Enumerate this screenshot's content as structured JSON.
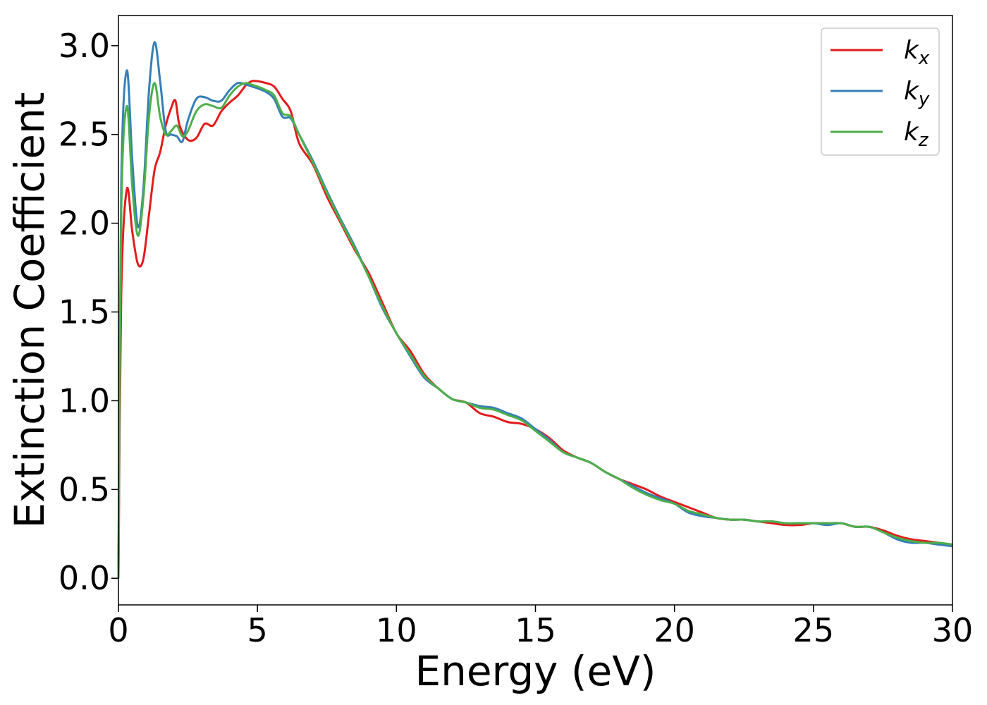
{
  "chart_data": {
    "type": "line",
    "xlabel": "Energy (eV)",
    "ylabel": "Extinction Coefficient",
    "xlim": [
      0,
      30
    ],
    "ylim": [
      -0.15,
      3.17
    ],
    "xticks": [
      0,
      5,
      10,
      15,
      20,
      25,
      30
    ],
    "yticks": [
      0.0,
      0.5,
      1.0,
      1.5,
      2.0,
      2.5,
      3.0
    ],
    "xtick_labels": [
      "0",
      "5",
      "10",
      "15",
      "20",
      "25",
      "30"
    ],
    "ytick_labels": [
      "0.0",
      "0.5",
      "1.0",
      "1.5",
      "2.0",
      "2.5",
      "3.0"
    ],
    "grid": false,
    "legend_position": "top-right",
    "series": [
      {
        "name": "k_x",
        "label_main": "k",
        "label_sub": "x",
        "color": "#e41a1c",
        "x": [
          0,
          0.1,
          0.3,
          0.5,
          0.7,
          0.9,
          1.1,
          1.3,
          1.5,
          1.7,
          1.9,
          2.05,
          2.2,
          2.5,
          2.8,
          3.1,
          3.4,
          3.7,
          4.0,
          4.3,
          4.6,
          4.8,
          5.0,
          5.3,
          5.6,
          5.9,
          6.2,
          6.5,
          7.0,
          7.5,
          8.0,
          8.5,
          9.0,
          9.5,
          10.0,
          10.5,
          11.0,
          11.5,
          12.0,
          12.5,
          13.0,
          13.5,
          14.0,
          14.5,
          15.0,
          15.5,
          16.0,
          16.5,
          17.0,
          17.5,
          18.0,
          18.5,
          19.0,
          19.5,
          20.0,
          20.5,
          21.0,
          21.5,
          22.0,
          22.5,
          23.0,
          23.5,
          24.0,
          24.5,
          25.0,
          25.5,
          26.0,
          26.5,
          27.0,
          27.5,
          28.0,
          28.5,
          29.0,
          29.5,
          30.0
        ],
        "y": [
          0.0,
          1.6,
          2.19,
          1.95,
          1.77,
          1.8,
          2.05,
          2.3,
          2.4,
          2.55,
          2.65,
          2.69,
          2.55,
          2.47,
          2.48,
          2.56,
          2.55,
          2.63,
          2.68,
          2.72,
          2.78,
          2.8,
          2.8,
          2.79,
          2.77,
          2.7,
          2.63,
          2.45,
          2.33,
          2.15,
          2.0,
          1.85,
          1.72,
          1.55,
          1.38,
          1.28,
          1.15,
          1.07,
          1.01,
          0.99,
          0.93,
          0.91,
          0.88,
          0.87,
          0.84,
          0.79,
          0.72,
          0.68,
          0.65,
          0.6,
          0.56,
          0.53,
          0.5,
          0.46,
          0.43,
          0.4,
          0.37,
          0.34,
          0.33,
          0.33,
          0.32,
          0.31,
          0.3,
          0.3,
          0.31,
          0.31,
          0.31,
          0.29,
          0.29,
          0.27,
          0.24,
          0.22,
          0.21,
          0.2,
          0.19
        ]
      },
      {
        "name": "k_y",
        "label_main": "k",
        "label_sub": "y",
        "color": "#377eb8",
        "x": [
          0,
          0.1,
          0.3,
          0.5,
          0.7,
          0.9,
          1.1,
          1.3,
          1.5,
          1.7,
          1.9,
          2.1,
          2.3,
          2.5,
          2.8,
          3.1,
          3.4,
          3.7,
          4.0,
          4.3,
          4.6,
          4.8,
          5.0,
          5.3,
          5.6,
          5.9,
          6.2,
          6.5,
          7.0,
          7.5,
          8.0,
          8.5,
          9.0,
          9.5,
          10.0,
          10.5,
          11.0,
          11.5,
          12.0,
          12.5,
          13.0,
          13.5,
          14.0,
          14.5,
          15.0,
          15.5,
          16.0,
          16.5,
          17.0,
          17.5,
          18.0,
          18.5,
          19.0,
          19.5,
          20.0,
          20.5,
          21.0,
          21.5,
          22.0,
          22.5,
          23.0,
          23.5,
          24.0,
          24.5,
          25.0,
          25.5,
          26.0,
          26.5,
          27.0,
          27.5,
          28.0,
          28.5,
          29.0,
          29.5,
          30.0
        ],
        "y": [
          0.0,
          2.2,
          2.86,
          2.35,
          1.98,
          2.2,
          2.75,
          3.02,
          2.8,
          2.52,
          2.5,
          2.49,
          2.46,
          2.58,
          2.7,
          2.71,
          2.69,
          2.69,
          2.75,
          2.79,
          2.78,
          2.77,
          2.76,
          2.74,
          2.7,
          2.6,
          2.59,
          2.5,
          2.35,
          2.18,
          2.02,
          1.87,
          1.7,
          1.52,
          1.38,
          1.25,
          1.13,
          1.07,
          1.01,
          0.99,
          0.97,
          0.96,
          0.93,
          0.9,
          0.84,
          0.78,
          0.71,
          0.68,
          0.65,
          0.6,
          0.56,
          0.52,
          0.48,
          0.45,
          0.42,
          0.37,
          0.35,
          0.34,
          0.33,
          0.33,
          0.32,
          0.32,
          0.31,
          0.31,
          0.31,
          0.3,
          0.31,
          0.29,
          0.29,
          0.26,
          0.22,
          0.2,
          0.2,
          0.19,
          0.18
        ]
      },
      {
        "name": "k_z",
        "label_main": "k",
        "label_sub": "z",
        "color": "#4daf4a",
        "x": [
          0,
          0.1,
          0.3,
          0.5,
          0.7,
          0.9,
          1.1,
          1.3,
          1.5,
          1.7,
          1.9,
          2.1,
          2.3,
          2.5,
          2.8,
          3.1,
          3.4,
          3.7,
          4.0,
          4.3,
          4.6,
          4.8,
          5.0,
          5.3,
          5.6,
          5.9,
          6.2,
          6.5,
          7.0,
          7.5,
          8.0,
          8.5,
          9.0,
          9.5,
          10.0,
          10.5,
          11.0,
          11.5,
          12.0,
          12.5,
          13.0,
          13.5,
          14.0,
          14.5,
          15.0,
          15.5,
          16.0,
          16.5,
          17.0,
          17.5,
          18.0,
          18.5,
          19.0,
          19.5,
          20.0,
          20.5,
          21.0,
          21.5,
          22.0,
          22.5,
          23.0,
          23.5,
          24.0,
          24.5,
          25.0,
          25.5,
          26.0,
          26.5,
          27.0,
          27.5,
          28.0,
          28.5,
          29.0,
          29.5,
          30.0
        ],
        "y": [
          0.0,
          2.05,
          2.66,
          2.2,
          1.93,
          2.15,
          2.6,
          2.79,
          2.6,
          2.5,
          2.52,
          2.55,
          2.49,
          2.52,
          2.63,
          2.67,
          2.66,
          2.65,
          2.72,
          2.77,
          2.79,
          2.78,
          2.77,
          2.75,
          2.72,
          2.62,
          2.6,
          2.5,
          2.34,
          2.17,
          2.01,
          1.86,
          1.7,
          1.53,
          1.38,
          1.26,
          1.14,
          1.07,
          1.01,
          0.99,
          0.96,
          0.95,
          0.92,
          0.89,
          0.83,
          0.77,
          0.71,
          0.68,
          0.65,
          0.6,
          0.56,
          0.51,
          0.47,
          0.44,
          0.42,
          0.38,
          0.36,
          0.34,
          0.33,
          0.33,
          0.32,
          0.32,
          0.31,
          0.31,
          0.31,
          0.31,
          0.31,
          0.29,
          0.29,
          0.26,
          0.23,
          0.21,
          0.2,
          0.2,
          0.19
        ]
      }
    ]
  }
}
